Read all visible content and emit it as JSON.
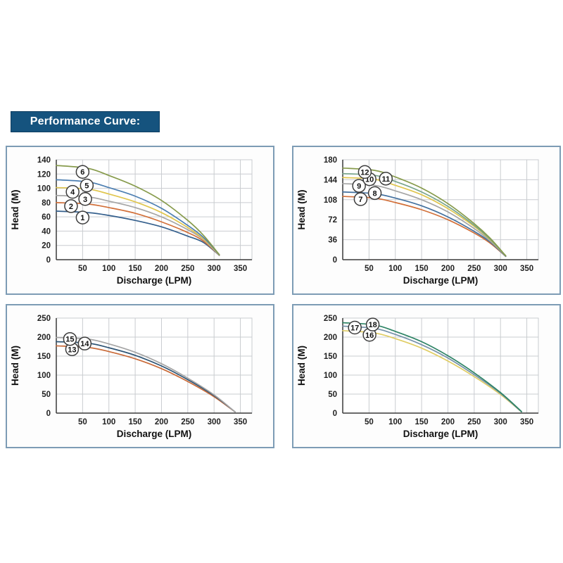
{
  "header": {
    "title": "Performance Curve:",
    "bg": "#15537e",
    "text_color": "#ffffff"
  },
  "styles": {
    "panel_border": "#7d9cb5",
    "grid_color": "#c9ccd0",
    "axis_color": "#3a3a3a",
    "tick_color": "#1f1f1f",
    "circle_fill": "#ffffff",
    "circle_stroke": "#3c3c3c"
  },
  "chart_data": [
    {
      "type": "line",
      "title": "",
      "xlabel": "Discharge (LPM)",
      "ylabel": "Head (M)",
      "xlim": [
        0,
        372
      ],
      "ylim": [
        0,
        140
      ],
      "x_ticks": [
        50,
        100,
        150,
        200,
        250,
        300,
        350
      ],
      "y_ticks": [
        0,
        20,
        40,
        60,
        80,
        100,
        120,
        140
      ],
      "grid": true,
      "legend": "circled numbers on curves",
      "series": [
        {
          "name": "1",
          "color": "#35608d",
          "label_at": [
            50,
            59
          ],
          "points": [
            [
              0,
              68
            ],
            [
              60,
              66
            ],
            [
              100,
              62
            ],
            [
              150,
              55
            ],
            [
              200,
              46
            ],
            [
              250,
              33
            ],
            [
              280,
              24
            ],
            [
              310,
              6
            ]
          ]
        },
        {
          "name": "2",
          "color": "#d2703a",
          "label_at": [
            28,
            75
          ],
          "points": [
            [
              0,
              80
            ],
            [
              60,
              78
            ],
            [
              100,
              73
            ],
            [
              150,
              65
            ],
            [
              200,
              53
            ],
            [
              250,
              38
            ],
            [
              280,
              26
            ],
            [
              310,
              6
            ]
          ]
        },
        {
          "name": "3",
          "color": "#a5a5a5",
          "label_at": [
            55,
            85
          ],
          "points": [
            [
              0,
              90
            ],
            [
              60,
              88
            ],
            [
              100,
              82
            ],
            [
              150,
              73
            ],
            [
              200,
              60
            ],
            [
              250,
              42
            ],
            [
              280,
              28
            ],
            [
              310,
              6
            ]
          ]
        },
        {
          "name": "4",
          "color": "#e0c64f",
          "label_at": [
            31,
            95
          ],
          "points": [
            [
              0,
              101
            ],
            [
              60,
              99
            ],
            [
              100,
              92
            ],
            [
              150,
              81
            ],
            [
              200,
              66
            ],
            [
              250,
              45
            ],
            [
              280,
              29
            ],
            [
              310,
              7
            ]
          ]
        },
        {
          "name": "5",
          "color": "#4d7fb2",
          "label_at": [
            58,
            104
          ],
          "points": [
            [
              0,
              112
            ],
            [
              60,
              109
            ],
            [
              100,
              101
            ],
            [
              150,
              89
            ],
            [
              200,
              72
            ],
            [
              250,
              48
            ],
            [
              280,
              31
            ],
            [
              310,
              7
            ]
          ]
        },
        {
          "name": "6",
          "color": "#879b4c",
          "label_at": [
            50,
            123
          ],
          "points": [
            [
              0,
              132
            ],
            [
              60,
              128
            ],
            [
              100,
              118
            ],
            [
              150,
              103
            ],
            [
              200,
              83
            ],
            [
              250,
              55
            ],
            [
              280,
              34
            ],
            [
              310,
              7
            ]
          ]
        }
      ]
    },
    {
      "type": "line",
      "title": "",
      "xlabel": "Discharge (LPM)",
      "ylabel": "Head (M)",
      "xlim": [
        0,
        372
      ],
      "ylim": [
        0,
        180
      ],
      "x_ticks": [
        50,
        100,
        150,
        200,
        250,
        300,
        350
      ],
      "y_ticks": [
        0,
        36,
        72,
        108,
        144,
        180
      ],
      "grid": true,
      "legend": "circled numbers on curves",
      "series": [
        {
          "name": "7",
          "color": "#d2703a",
          "label_at": [
            34,
            109
          ],
          "points": [
            [
              0,
              114
            ],
            [
              60,
              111
            ],
            [
              100,
              103
            ],
            [
              150,
              90
            ],
            [
              200,
              72
            ],
            [
              250,
              48
            ],
            [
              280,
              30
            ],
            [
              310,
              6
            ]
          ]
        },
        {
          "name": "8",
          "color": "#44719f",
          "label_at": [
            61,
            120
          ],
          "points": [
            [
              0,
              122
            ],
            [
              60,
              119
            ],
            [
              100,
              111
            ],
            [
              150,
              97
            ],
            [
              200,
              77
            ],
            [
              250,
              51
            ],
            [
              280,
              32
            ],
            [
              310,
              6
            ]
          ]
        },
        {
          "name": "9",
          "color": "#a5a5a5",
          "label_at": [
            31,
            133
          ],
          "points": [
            [
              0,
              137
            ],
            [
              60,
              134
            ],
            [
              100,
              124
            ],
            [
              150,
              108
            ],
            [
              200,
              86
            ],
            [
              250,
              56
            ],
            [
              280,
              34
            ],
            [
              310,
              7
            ]
          ]
        },
        {
          "name": "10",
          "color": "#e0c64f",
          "label_at": [
            51,
            145
          ],
          "points": [
            [
              0,
              148
            ],
            [
              60,
              145
            ],
            [
              100,
              134
            ],
            [
              150,
              117
            ],
            [
              200,
              92
            ],
            [
              250,
              60
            ],
            [
              280,
              36
            ],
            [
              310,
              7
            ]
          ]
        },
        {
          "name": "11",
          "color": "#79a58c",
          "label_at": [
            82,
            146
          ],
          "points": [
            [
              0,
              155
            ],
            [
              60,
              152
            ],
            [
              100,
              141
            ],
            [
              150,
              122
            ],
            [
              200,
              96
            ],
            [
              250,
              62
            ],
            [
              280,
              37
            ],
            [
              310,
              7
            ]
          ]
        },
        {
          "name": "12",
          "color": "#879b4c",
          "label_at": [
            42,
            158
          ],
          "points": [
            [
              0,
              165
            ],
            [
              60,
              161
            ],
            [
              100,
              149
            ],
            [
              150,
              129
            ],
            [
              200,
              101
            ],
            [
              250,
              65
            ],
            [
              280,
              39
            ],
            [
              310,
              7
            ]
          ]
        }
      ]
    },
    {
      "type": "line",
      "title": "",
      "xlabel": "Discharge (LPM)",
      "ylabel": "Head (M)",
      "xlim": [
        0,
        372
      ],
      "ylim": [
        0,
        250
      ],
      "x_ticks": [
        50,
        100,
        150,
        200,
        250,
        300,
        350
      ],
      "y_ticks": [
        0,
        50,
        100,
        150,
        200,
        250
      ],
      "grid": true,
      "legend": "circled numbers on curves",
      "series": [
        {
          "name": "13",
          "color": "#c96a38",
          "label_at": [
            30,
            168
          ],
          "points": [
            [
              0,
              177
            ],
            [
              60,
              173
            ],
            [
              100,
              162
            ],
            [
              150,
              143
            ],
            [
              200,
              117
            ],
            [
              250,
              83
            ],
            [
              300,
              43
            ],
            [
              340,
              3
            ]
          ]
        },
        {
          "name": "14",
          "color": "#2f5575",
          "label_at": [
            54,
            183
          ],
          "points": [
            [
              0,
              188
            ],
            [
              60,
              184
            ],
            [
              100,
              172
            ],
            [
              150,
              152
            ],
            [
              200,
              124
            ],
            [
              250,
              88
            ],
            [
              300,
              46
            ],
            [
              340,
              3
            ]
          ]
        },
        {
          "name": "15",
          "color": "#a5a5a5",
          "label_at": [
            26,
            195
          ],
          "points": [
            [
              0,
              199
            ],
            [
              60,
              195
            ],
            [
              100,
              182
            ],
            [
              150,
              160
            ],
            [
              200,
              130
            ],
            [
              250,
              92
            ],
            [
              300,
              48
            ],
            [
              340,
              3
            ]
          ]
        }
      ]
    },
    {
      "type": "line",
      "title": "",
      "xlabel": "Discharge (LPM)",
      "ylabel": "Head (M)",
      "xlim": [
        0,
        372
      ],
      "ylim": [
        0,
        250
      ],
      "x_ticks": [
        50,
        100,
        150,
        200,
        250,
        300,
        350
      ],
      "y_ticks": [
        0,
        50,
        100,
        150,
        200,
        250
      ],
      "grid": true,
      "legend": "circled numbers on curves",
      "series": [
        {
          "name": "16",
          "color": "#e0cd64",
          "label_at": [
            51,
            206
          ],
          "points": [
            [
              0,
              217
            ],
            [
              60,
              211
            ],
            [
              100,
              196
            ],
            [
              150,
              171
            ],
            [
              200,
              137
            ],
            [
              250,
              96
            ],
            [
              300,
              49
            ],
            [
              340,
              3
            ]
          ]
        },
        {
          "name": "17",
          "color": "#7793a9",
          "label_at": [
            23,
            225
          ],
          "points": [
            [
              0,
              229
            ],
            [
              60,
              223
            ],
            [
              100,
              207
            ],
            [
              150,
              180
            ],
            [
              200,
              145
            ],
            [
              250,
              101
            ],
            [
              300,
              52
            ],
            [
              340,
              3
            ]
          ]
        },
        {
          "name": "18",
          "color": "#2e8465",
          "label_at": [
            57,
            233
          ],
          "points": [
            [
              0,
              238
            ],
            [
              60,
              232
            ],
            [
              100,
              215
            ],
            [
              150,
              188
            ],
            [
              200,
              151
            ],
            [
              250,
              106
            ],
            [
              300,
              54
            ],
            [
              340,
              4
            ]
          ]
        }
      ]
    }
  ]
}
